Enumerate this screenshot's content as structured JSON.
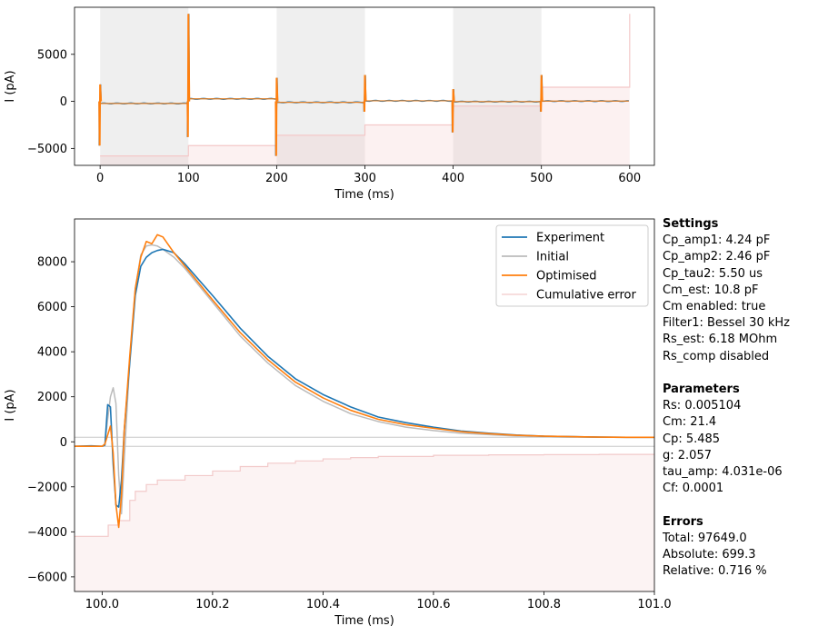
{
  "chart_data": [
    {
      "type": "line",
      "xlabel": "Time (ms)",
      "ylabel": "I (pA)",
      "xlim": [
        -29,
        628
      ],
      "ylim": [
        -6800,
        10000
      ],
      "xticks": [
        0,
        100,
        200,
        300,
        400,
        500,
        600
      ],
      "yticks": [
        -5000,
        0,
        5000
      ],
      "shaded_intervals": [
        [
          0,
          100
        ],
        [
          200,
          300
        ],
        [
          400,
          500
        ]
      ],
      "steps": {
        "segments": [
          {
            "x": [
              0,
              100
            ],
            "level": -220
          },
          {
            "x": [
              100,
              200
            ],
            "level": 270
          },
          {
            "x": [
              200,
              300
            ],
            "level": -100
          },
          {
            "x": [
              300,
              400
            ],
            "level": 60
          },
          {
            "x": [
              400,
              500
            ],
            "level": -30
          },
          {
            "x": [
              500,
              600
            ],
            "level": 30
          }
        ],
        "transients": [
          {
            "x": 0,
            "up": 1800,
            "down": -4700
          },
          {
            "x": 100,
            "up": 9300,
            "down": -3800
          },
          {
            "x": 200,
            "up": 2500,
            "down": -5800
          },
          {
            "x": 300,
            "up": 2800,
            "down": -1100
          },
          {
            "x": 400,
            "up": 1300,
            "down": -3300
          },
          {
            "x": 500,
            "up": 2800,
            "down": -1100
          }
        ]
      },
      "cumulative_error": [
        [
          0,
          -5800
        ],
        [
          100,
          -4700
        ],
        [
          200,
          -3600
        ],
        [
          300,
          -2500
        ],
        [
          400,
          -500
        ],
        [
          500,
          1500
        ],
        [
          600,
          9300
        ]
      ],
      "series": [
        {
          "name": "Experiment",
          "color": "#1f77b4"
        },
        {
          "name": "Optimised",
          "color": "#ff7f0e"
        }
      ]
    },
    {
      "type": "line",
      "xlabel": "Time (ms)",
      "ylabel": "I (pA)",
      "xlim": [
        99.95,
        101.0
      ],
      "ylim": [
        -6650,
        9900
      ],
      "xticks": [
        100.0,
        100.2,
        100.4,
        100.6,
        100.8,
        101.0
      ],
      "yticks": [
        -6000,
        -4000,
        -2000,
        0,
        2000,
        4000,
        6000,
        8000
      ],
      "hlines": [
        200,
        -200
      ],
      "legend_position": "top-right",
      "series": [
        {
          "name": "Experiment",
          "color": "#1f77b4",
          "points": [
            [
              99.95,
              -200
            ],
            [
              99.98,
              -180
            ],
            [
              100.0,
              -200
            ],
            [
              100.005,
              -150
            ],
            [
              100.01,
              1650
            ],
            [
              100.015,
              1550
            ],
            [
              100.02,
              -1000
            ],
            [
              100.025,
              -2800
            ],
            [
              100.03,
              -2900
            ],
            [
              100.035,
              -1700
            ],
            [
              100.04,
              500
            ],
            [
              100.05,
              3500
            ],
            [
              100.06,
              6500
            ],
            [
              100.07,
              7800
            ],
            [
              100.08,
              8200
            ],
            [
              100.09,
              8400
            ],
            [
              100.1,
              8500
            ],
            [
              100.11,
              8550
            ],
            [
              100.13,
              8400
            ],
            [
              100.15,
              7900
            ],
            [
              100.2,
              6500
            ],
            [
              100.25,
              5050
            ],
            [
              100.3,
              3800
            ],
            [
              100.35,
              2800
            ],
            [
              100.4,
              2100
            ],
            [
              100.45,
              1550
            ],
            [
              100.5,
              1100
            ],
            [
              100.55,
              850
            ],
            [
              100.6,
              650
            ],
            [
              100.65,
              480
            ],
            [
              100.7,
              380
            ],
            [
              100.75,
              300
            ],
            [
              100.8,
              250
            ],
            [
              100.85,
              230
            ],
            [
              100.9,
              210
            ],
            [
              100.95,
              200
            ],
            [
              101.0,
              200
            ]
          ]
        },
        {
          "name": "Initial",
          "color": "#bbbbbb",
          "points": [
            [
              99.95,
              -200
            ],
            [
              99.98,
              -200
            ],
            [
              100.0,
              -200
            ],
            [
              100.005,
              -100
            ],
            [
              100.01,
              1000
            ],
            [
              100.015,
              2000
            ],
            [
              100.02,
              2400
            ],
            [
              100.025,
              1700
            ],
            [
              100.03,
              -1500
            ],
            [
              100.035,
              -3200
            ],
            [
              100.04,
              -800
            ],
            [
              100.05,
              3600
            ],
            [
              100.06,
              6800
            ],
            [
              100.07,
              8300
            ],
            [
              100.08,
              8700
            ],
            [
              100.09,
              8750
            ],
            [
              100.1,
              8700
            ],
            [
              100.11,
              8550
            ],
            [
              100.13,
              8200
            ],
            [
              100.15,
              7700
            ],
            [
              100.2,
              6200
            ],
            [
              100.25,
              4700
            ],
            [
              100.3,
              3500
            ],
            [
              100.35,
              2500
            ],
            [
              100.4,
              1800
            ],
            [
              100.45,
              1250
            ],
            [
              100.5,
              900
            ],
            [
              100.55,
              650
            ],
            [
              100.6,
              500
            ],
            [
              100.65,
              380
            ],
            [
              100.7,
              320
            ],
            [
              100.75,
              260
            ],
            [
              100.8,
              230
            ],
            [
              100.85,
              210
            ],
            [
              100.9,
              200
            ],
            [
              100.95,
              200
            ],
            [
              101.0,
              200
            ]
          ]
        },
        {
          "name": "Optimised",
          "color": "#ff7f0e",
          "points": [
            [
              99.95,
              -200
            ],
            [
              99.98,
              -200
            ],
            [
              100.0,
              -200
            ],
            [
              100.005,
              -100
            ],
            [
              100.01,
              300
            ],
            [
              100.015,
              700
            ],
            [
              100.02,
              -500
            ],
            [
              100.025,
              -2800
            ],
            [
              100.03,
              -3800
            ],
            [
              100.035,
              -2400
            ],
            [
              100.04,
              500
            ],
            [
              100.05,
              3800
            ],
            [
              100.06,
              6800
            ],
            [
              100.07,
              8200
            ],
            [
              100.08,
              8900
            ],
            [
              100.09,
              8800
            ],
            [
              100.1,
              9200
            ],
            [
              100.11,
              9100
            ],
            [
              100.13,
              8400
            ],
            [
              100.15,
              7800
            ],
            [
              100.2,
              6300
            ],
            [
              100.25,
              4850
            ],
            [
              100.3,
              3650
            ],
            [
              100.35,
              2650
            ],
            [
              100.4,
              1950
            ],
            [
              100.45,
              1400
            ],
            [
              100.5,
              1000
            ],
            [
              100.55,
              760
            ],
            [
              100.6,
              600
            ],
            [
              100.65,
              450
            ],
            [
              100.7,
              360
            ],
            [
              100.75,
              290
            ],
            [
              100.8,
              250
            ],
            [
              100.85,
              230
            ],
            [
              100.9,
              210
            ],
            [
              100.95,
              200
            ],
            [
              101.0,
              200
            ]
          ]
        },
        {
          "name": "Cumulative error",
          "color": "#f2caca",
          "points": [
            [
              99.95,
              -4200
            ],
            [
              100.0,
              -4200
            ],
            [
              100.01,
              -4200
            ],
            [
              100.011,
              -3700
            ],
            [
              100.03,
              -3500
            ],
            [
              100.05,
              -2600
            ],
            [
              100.06,
              -2200
            ],
            [
              100.08,
              -1900
            ],
            [
              100.1,
              -1700
            ],
            [
              100.15,
              -1500
            ],
            [
              100.2,
              -1300
            ],
            [
              100.25,
              -1100
            ],
            [
              100.3,
              -950
            ],
            [
              100.35,
              -850
            ],
            [
              100.4,
              -760
            ],
            [
              100.45,
              -700
            ],
            [
              100.5,
              -650
            ],
            [
              100.6,
              -600
            ],
            [
              100.7,
              -580
            ],
            [
              100.8,
              -570
            ],
            [
              100.9,
              -560
            ],
            [
              101.0,
              -550
            ]
          ]
        }
      ]
    }
  ],
  "settings": {
    "title": "Settings",
    "lines": [
      "Cp_amp1: 4.24 pF",
      "Cp_amp2: 2.46 pF",
      "Cp_tau2: 5.50 us",
      "Cm_est: 10.8 pF",
      "Cm enabled: true",
      "Filter1: Bessel 30 kHz",
      "Rs_est: 6.18 MOhm",
      "Rs_comp disabled"
    ]
  },
  "parameters": {
    "title": "Parameters",
    "lines": [
      "Rs: 0.005104",
      "Cm: 21.4",
      "Cp: 5.485",
      "g: 2.057",
      "tau_amp: 4.031e-06",
      "Cf: 0.0001"
    ]
  },
  "errors": {
    "title": "Errors",
    "lines": [
      "Total: 97649.0",
      "Absolute: 699.3",
      "Relative: 0.716 %"
    ]
  }
}
